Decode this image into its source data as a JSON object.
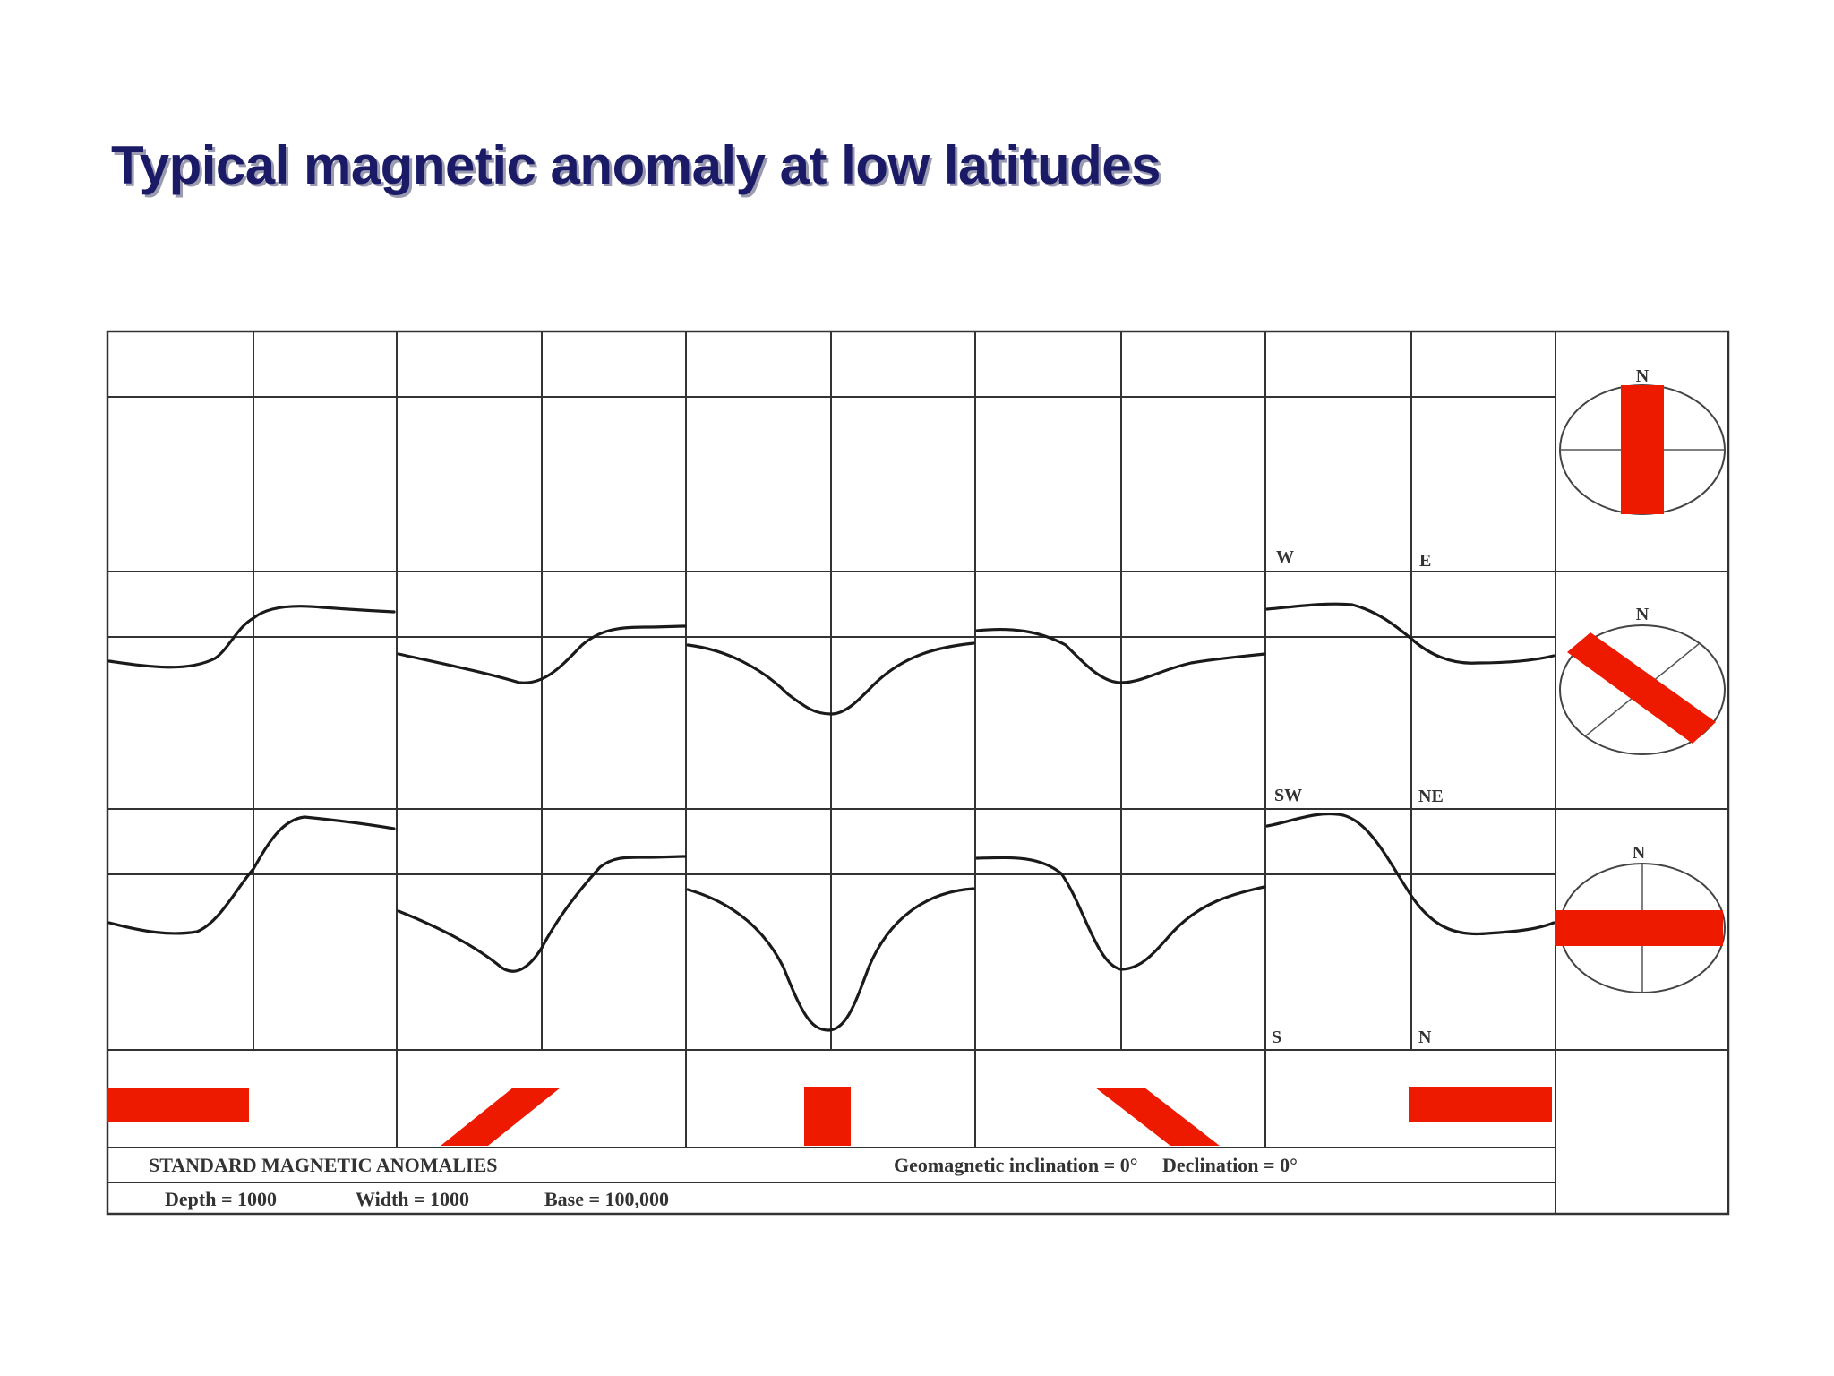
{
  "slide": {
    "title": "Typical magnetic anomaly at low latitudes"
  },
  "figure": {
    "row_labels": [
      {
        "left": "W",
        "right": "E"
      },
      {
        "left": "SW",
        "right": "NE"
      },
      {
        "left": "S",
        "right": "N"
      }
    ],
    "compass_north_label": "N",
    "caption_title": "STANDARD MAGNETIC ANOMALIES",
    "caption_params": "Geomagnetic inclination = 0°     Declination = 0°",
    "caption_depth": "Depth = 1000",
    "caption_width": "Width = 1000",
    "caption_base": "Base = 100,000",
    "colors": {
      "title": "#1a1a66",
      "body": "#ee1a00",
      "grid": "#333333"
    }
  }
}
